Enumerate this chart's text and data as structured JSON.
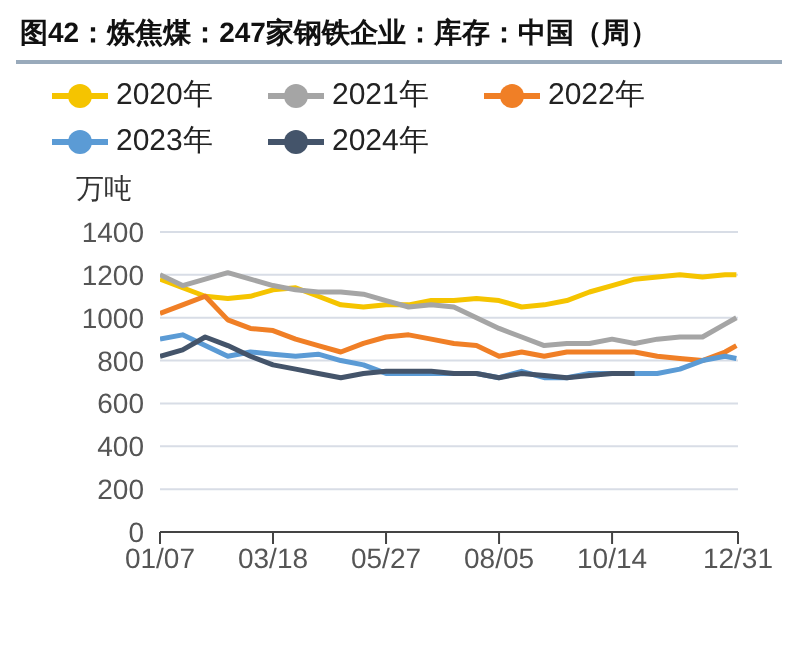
{
  "chart_data": {
    "type": "line",
    "title": "图42：炼焦煤：247家钢铁企业：库存：中国（周）",
    "ylabel": "万吨",
    "x": [
      "--01-07",
      "--01-21",
      "--02-04",
      "--02-18",
      "--03-04",
      "--03-18",
      "--04-01",
      "--04-15",
      "--04-29",
      "--05-13",
      "--05-27",
      "--06-10",
      "--06-24",
      "--07-08",
      "--07-22",
      "--08-05",
      "--08-19",
      "--09-02",
      "--09-16",
      "--09-30",
      "--10-14",
      "--10-28",
      "--11-11",
      "--11-25",
      "--12-09",
      "--12-23",
      "--12-30"
    ],
    "series": [
      {
        "name": "2020年",
        "color": "#f5c400",
        "values": [
          1180,
          1140,
          1100,
          1090,
          1100,
          1130,
          1140,
          1100,
          1060,
          1050,
          1060,
          1060,
          1080,
          1080,
          1090,
          1080,
          1050,
          1060,
          1080,
          1120,
          1150,
          1180,
          1190,
          1200,
          1190,
          1200,
          1200
        ]
      },
      {
        "name": "2021年",
        "color": "#a5a5a5",
        "values": [
          1200,
          1150,
          1180,
          1210,
          1180,
          1150,
          1130,
          1120,
          1120,
          1110,
          1080,
          1050,
          1060,
          1050,
          1000,
          950,
          910,
          870,
          880,
          880,
          900,
          880,
          900,
          910,
          910,
          970,
          1000
        ]
      },
      {
        "name": "2022年",
        "color": "#f07f26",
        "values": [
          1020,
          1060,
          1100,
          990,
          950,
          940,
          900,
          870,
          840,
          880,
          910,
          920,
          900,
          880,
          870,
          820,
          840,
          820,
          840,
          840,
          840,
          840,
          820,
          810,
          800,
          840,
          870
        ]
      },
      {
        "name": "2023年",
        "color": "#5b9bd5",
        "values": [
          900,
          920,
          870,
          820,
          840,
          830,
          820,
          830,
          800,
          780,
          740,
          740,
          740,
          740,
          740,
          720,
          750,
          720,
          720,
          740,
          740,
          740,
          740,
          760,
          800,
          820,
          810
        ]
      },
      {
        "name": "2024年",
        "color": "#44546a",
        "values": [
          820,
          850,
          910,
          870,
          820,
          780,
          760,
          740,
          720,
          740,
          750,
          750,
          750,
          740,
          740,
          720,
          740,
          730,
          720,
          730,
          740,
          740,
          null,
          null,
          null,
          null,
          null
        ]
      }
    ],
    "xlim": [
      "--01-07",
      "--12-31"
    ],
    "xticks": [
      {
        "value": "--01-07",
        "label": "01/07"
      },
      {
        "value": "--03-18",
        "label": "03/18"
      },
      {
        "value": "--05-27",
        "label": "05/27"
      },
      {
        "value": "--08-05",
        "label": "08/05"
      },
      {
        "value": "--10-14",
        "label": "10/14"
      },
      {
        "value": "--12-31",
        "label": "12/31"
      }
    ],
    "ylim": [
      0,
      1400
    ],
    "yticks": [
      0,
      200,
      400,
      600,
      800,
      1000,
      1200,
      1400
    ],
    "grid": "y",
    "legend": "top",
    "marker": "none",
    "line_style": "solid"
  }
}
